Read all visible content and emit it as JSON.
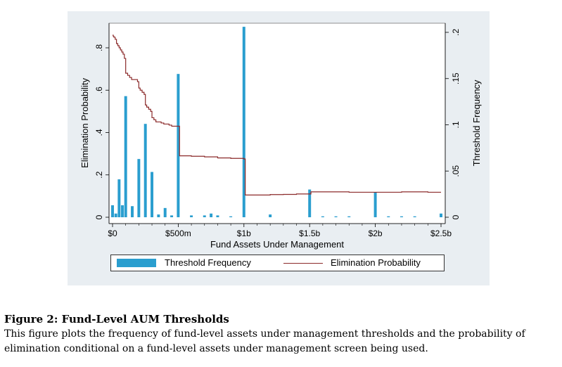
{
  "caption": {
    "title": "Figure 2: Fund-Level AUM Thresholds",
    "body": "This figure plots the frequency of fund-level assets under management thresholds and the probability of elimination conditional on a fund-level assets under management screen being used."
  },
  "colors": {
    "bars": "#2a9ecf",
    "line": "#8b2a2a",
    "panel": "#e9eef2"
  },
  "chart_data": {
    "type": "bar",
    "xlabel": "Fund Assets Under Management",
    "ylabel_left": "Elimination Probability",
    "ylabel_right": "Threshold Frequency",
    "x_unit": "millions USD",
    "xlim": [
      0,
      2500
    ],
    "ylim_left": [
      0,
      0.9
    ],
    "ylim_right": [
      0,
      0.21
    ],
    "x_ticks": [
      {
        "value": 0,
        "label": "$0"
      },
      {
        "value": 500,
        "label": "$500m"
      },
      {
        "value": 1000,
        "label": "$1b"
      },
      {
        "value": 1500,
        "label": "$1.5b"
      },
      {
        "value": 2000,
        "label": "$2b"
      },
      {
        "value": 2500,
        "label": "$2.5b"
      }
    ],
    "y_ticks_left": [
      {
        "value": 0,
        "label": "0"
      },
      {
        "value": 0.2,
        "label": ".2"
      },
      {
        "value": 0.4,
        "label": ".4"
      },
      {
        "value": 0.6,
        "label": ".6"
      },
      {
        "value": 0.8,
        "label": ".8"
      }
    ],
    "y_ticks_right": [
      {
        "value": 0,
        "label": "0"
      },
      {
        "value": 0.05,
        "label": ".05"
      },
      {
        "value": 0.1,
        "label": ".1"
      },
      {
        "value": 0.15,
        "label": ".15"
      },
      {
        "value": 0.2,
        "label": ".2"
      }
    ],
    "series": [
      {
        "name": "Threshold Frequency",
        "axis": "right",
        "type": "bar",
        "bar_width": 25,
        "x": [
          0,
          25,
          50,
          75,
          100,
          150,
          200,
          250,
          300,
          350,
          400,
          450,
          500,
          600,
          700,
          750,
          800,
          900,
          1000,
          1200,
          1500,
          1600,
          1700,
          1800,
          2000,
          2100,
          2200,
          2300,
          2500
        ],
        "values": [
          0.013,
          0.004,
          0.041,
          0.013,
          0.131,
          0.012,
          0.063,
          0.101,
          0.049,
          0.003,
          0.01,
          0.002,
          0.155,
          0.002,
          0.002,
          0.004,
          0.002,
          0.001,
          0.206,
          0.003,
          0.03,
          0.001,
          0.001,
          0.001,
          0.027,
          0.001,
          0.001,
          0.001,
          0.004
        ]
      },
      {
        "name": "Elimination Probability",
        "axis": "left",
        "type": "line",
        "x": [
          0,
          5,
          10,
          20,
          30,
          40,
          50,
          60,
          70,
          80,
          90,
          100,
          115,
          130,
          145,
          160,
          175,
          190,
          200,
          210,
          225,
          240,
          250,
          260,
          275,
          290,
          300,
          315,
          330,
          350,
          370,
          390,
          410,
          430,
          450,
          470,
          490,
          500,
          510,
          550,
          600,
          700,
          800,
          900,
          1000,
          1010,
          1100,
          1200,
          1300,
          1400,
          1500,
          1510,
          1600,
          1800,
          2000,
          2200,
          2300,
          2400,
          2500
        ],
        "values": [
          0.86,
          0.855,
          0.85,
          0.84,
          0.82,
          0.81,
          0.8,
          0.79,
          0.78,
          0.77,
          0.75,
          0.68,
          0.67,
          0.66,
          0.65,
          0.65,
          0.65,
          0.64,
          0.61,
          0.6,
          0.59,
          0.58,
          0.53,
          0.52,
          0.51,
          0.5,
          0.47,
          0.46,
          0.45,
          0.45,
          0.445,
          0.44,
          0.44,
          0.435,
          0.43,
          0.43,
          0.43,
          0.43,
          0.29,
          0.29,
          0.288,
          0.285,
          0.28,
          0.278,
          0.275,
          0.105,
          0.105,
          0.107,
          0.108,
          0.11,
          0.11,
          0.12,
          0.12,
          0.118,
          0.118,
          0.12,
          0.12,
          0.118,
          0.118
        ]
      }
    ],
    "legend": {
      "position": "bottom",
      "entries": [
        "Threshold Frequency",
        "Elimination Probability"
      ]
    },
    "grid": false
  }
}
